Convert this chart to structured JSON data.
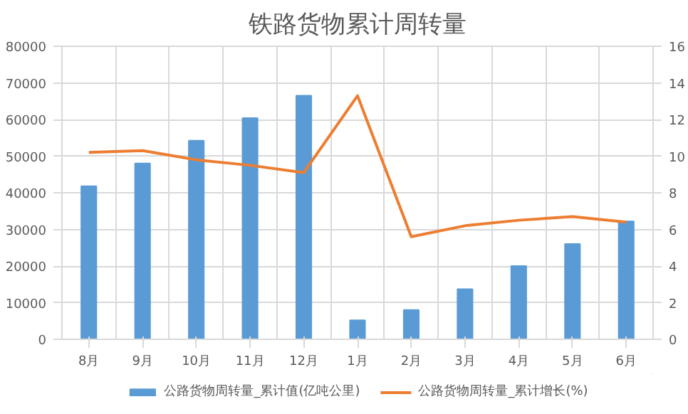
{
  "chart_data": {
    "type": "bar",
    "title": "铁路货物累计周转量",
    "categories": [
      "8月",
      "9月",
      "10月",
      "11月",
      "12月",
      "1月",
      "2月",
      "3月",
      "4月",
      "5月",
      "6月"
    ],
    "series": [
      {
        "name": "公路货物周转量_累计值(亿吨公里)",
        "color": "#5b9bd5",
        "values": [
          41800,
          48000,
          54200,
          60400,
          66500,
          5200,
          8000,
          13700,
          20000,
          26000,
          32200
        ]
      },
      {
        "name": "公路货物周转量_累计增长(%)",
        "color": "#ed7d31",
        "type": "line",
        "axis": "y2",
        "values": [
          10.2,
          10.3,
          9.8,
          9.5,
          9.1,
          13.3,
          5.6,
          6.2,
          6.5,
          6.7,
          6.4
        ]
      }
    ],
    "ylim": [
      0,
      80000
    ],
    "yticks": [
      0,
      10000,
      20000,
      30000,
      40000,
      50000,
      60000,
      70000,
      80000
    ],
    "y2lim": [
      0,
      16
    ],
    "y2ticks": [
      0,
      2,
      4,
      6,
      8,
      10,
      12,
      14,
      16
    ],
    "grid": true,
    "legend": "bottom"
  }
}
